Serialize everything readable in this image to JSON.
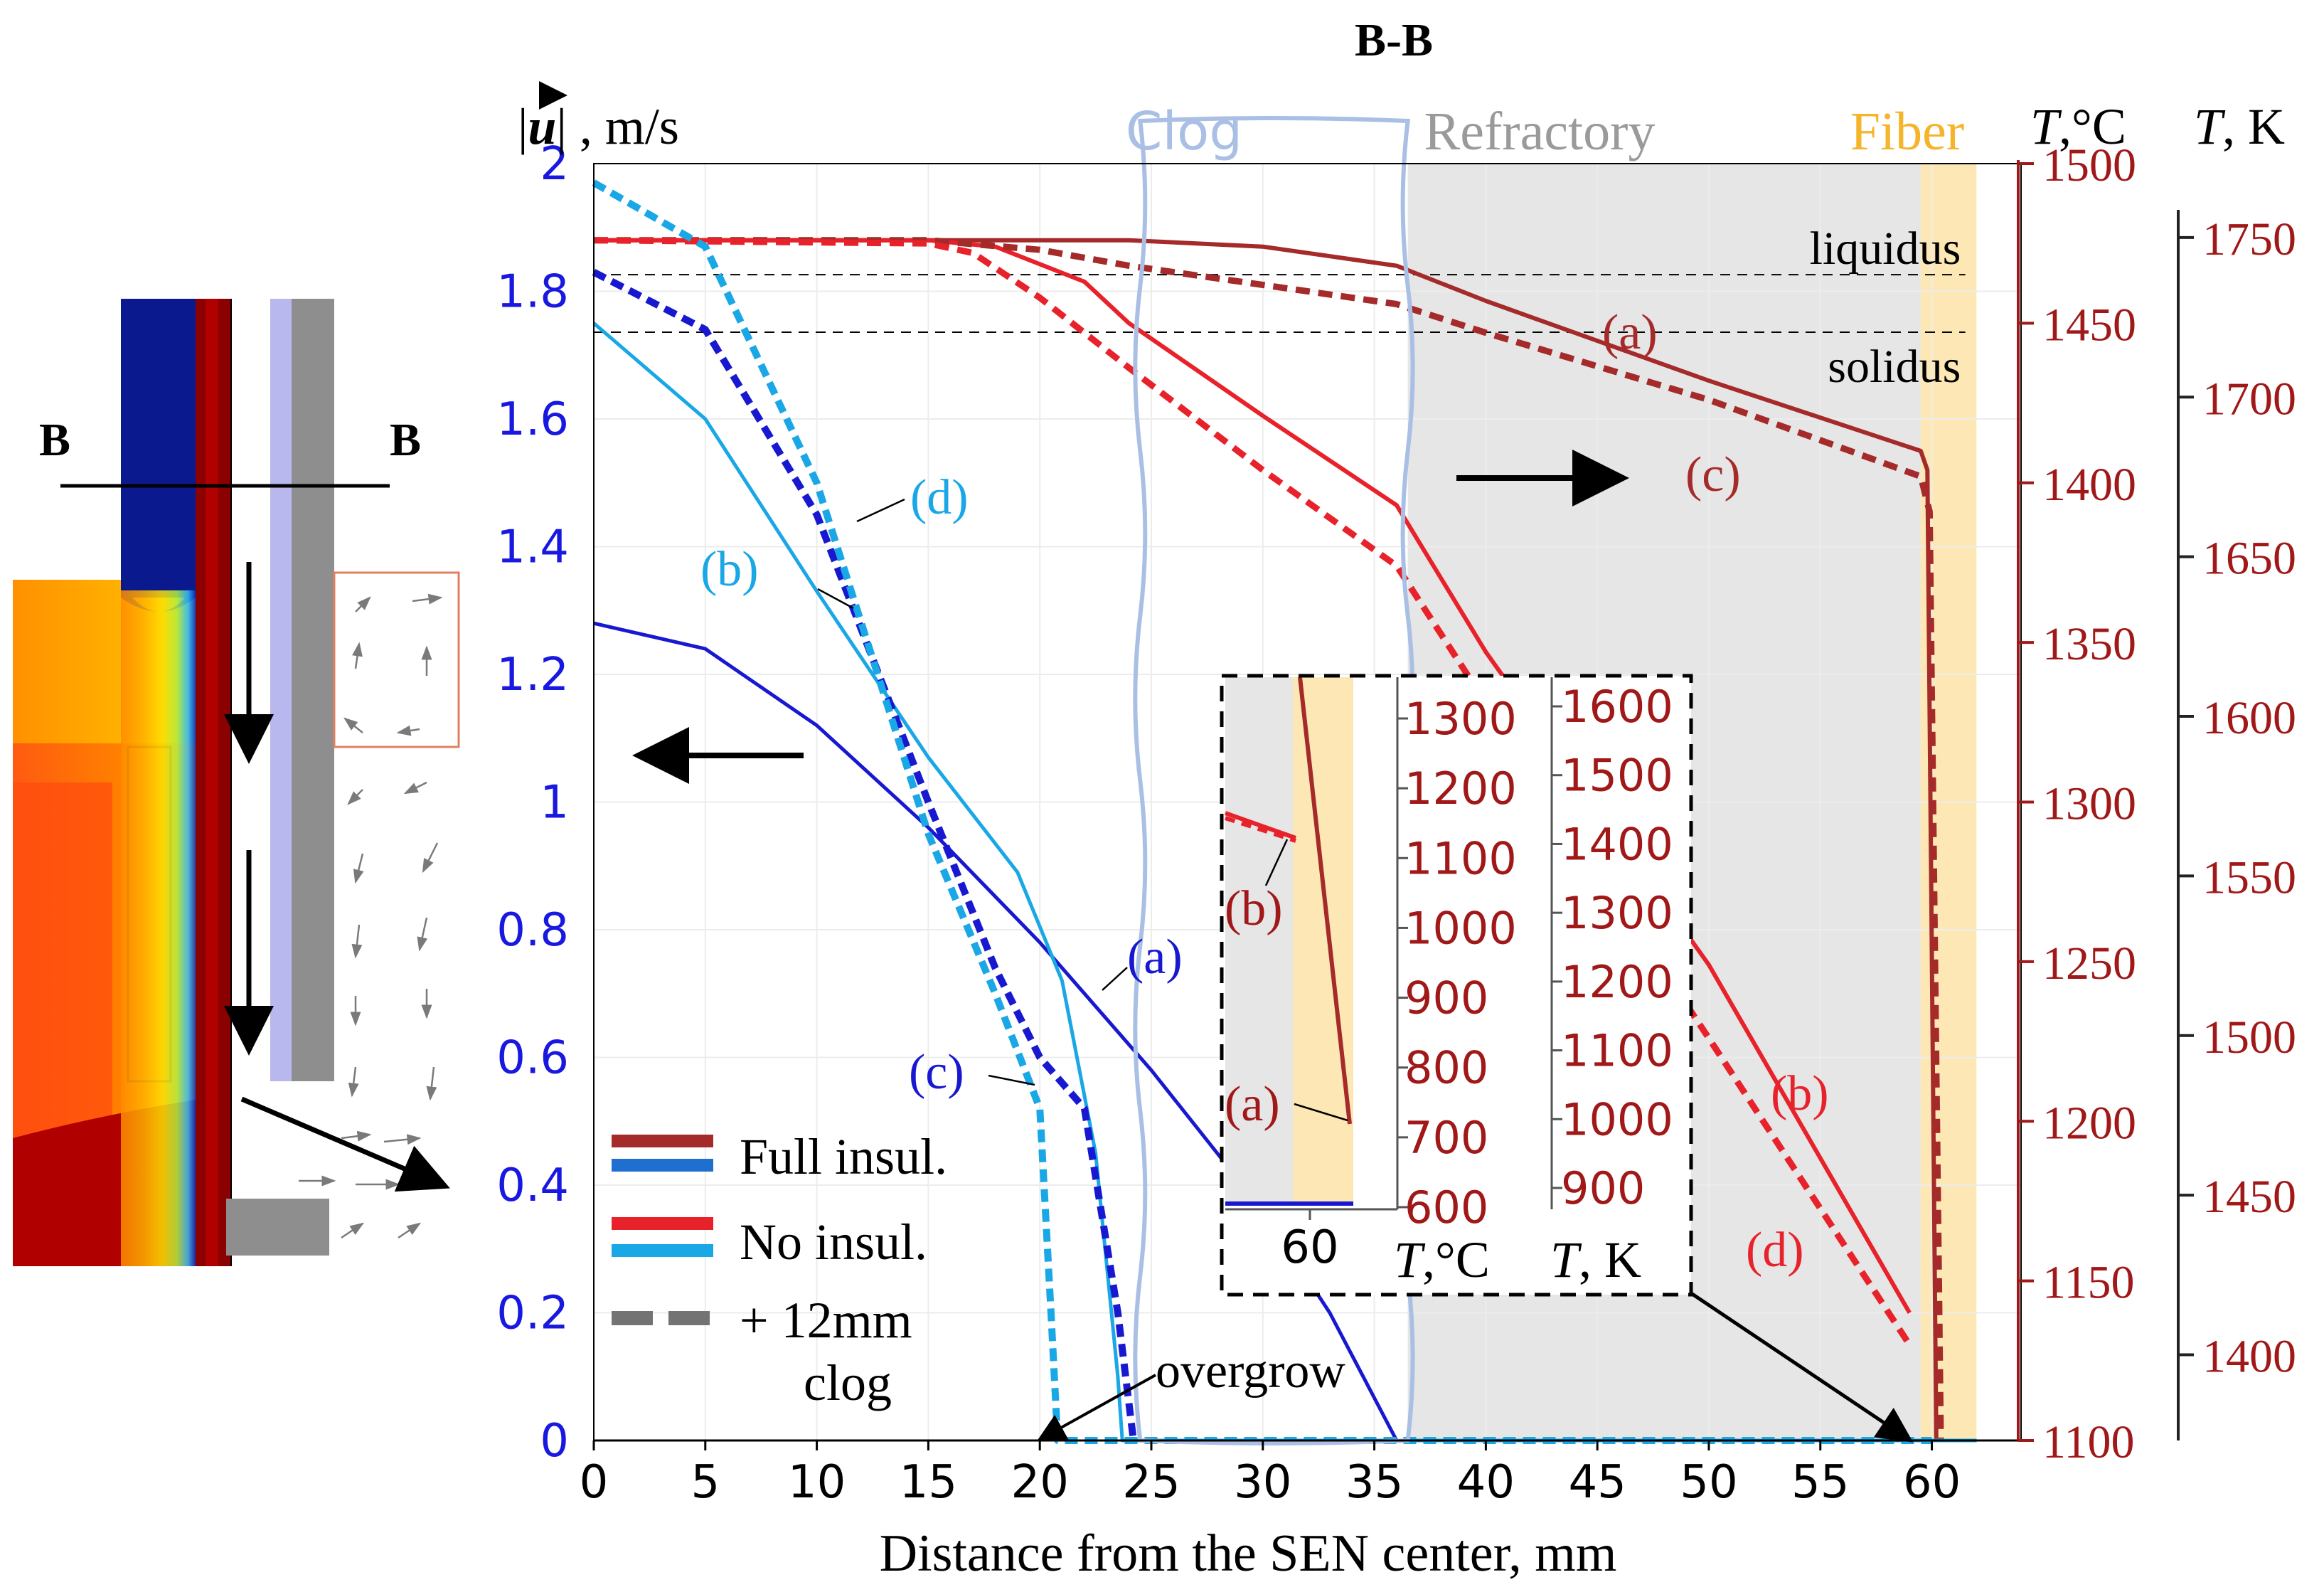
{
  "title": "B-B",
  "colors": {
    "full_temp": "#a52a2a",
    "no_temp": "#e8222a",
    "full_vel": "#1818d0",
    "no_vel": "#1aa7e6",
    "left_axis": "#1818e0",
    "right_axis": "#a01818",
    "clog_box": "#a9bfe4",
    "refractory_fill": "#e6e6e6",
    "fiber_fill": "#fde8b5",
    "label_refractory": "#9a9a9a",
    "label_fiber": "#f5b42a",
    "label_clog": "#a9bfe4"
  },
  "regions": {
    "clog": {
      "label": "Clog",
      "x_range": [
        24.5,
        36.5
      ]
    },
    "refractory": {
      "label": "Refractory",
      "x_range": [
        36.5,
        59.5
      ]
    },
    "fiber": {
      "label": "Fiber",
      "x_range": [
        59.5,
        62
      ]
    }
  },
  "left_schematic": {
    "section_label_left": "B",
    "section_label_right": "B"
  },
  "reference_lines": [
    {
      "label": "liquidus",
      "velocity_equiv": 1.826
    },
    {
      "label": "solidus",
      "velocity_equiv": 1.736
    }
  ],
  "annotations": {
    "overgrow": "overgrow",
    "curve_a_vel": "(a)",
    "curve_b_vel": "(b)",
    "curve_c_vel": "(c)",
    "curve_d_vel": "(d)",
    "curve_a_temp": "(a)",
    "curve_b_temp": "(b)",
    "curve_c_temp": "(c)",
    "curve_d_temp": "(d)"
  },
  "legend": {
    "items": [
      {
        "label": "Full insul.",
        "style": "solid-pair-full"
      },
      {
        "label": "No insul.",
        "style": "solid-pair-no"
      },
      {
        "label": "+ 12mm",
        "style": "dashed-gray"
      },
      {
        "label": "clog",
        "style": "continuation"
      }
    ]
  },
  "inset": {
    "x_tick": "60",
    "c_ticks": [
      "600",
      "700",
      "800",
      "900",
      "1000",
      "1100",
      "1200",
      "1300"
    ],
    "k_ticks": [
      "900",
      "1000",
      "1100",
      "1200",
      "1300",
      "1400",
      "1500",
      "1600"
    ],
    "c_label_T": "T",
    "c_label_unit": ",°C",
    "k_label_T": "T",
    "k_label_unit": ", K",
    "label_b": "(b)",
    "label_a": "(a)"
  },
  "chart_data": {
    "type": "line",
    "title": "B-B",
    "xlabel": "Distance from the SEN center, mm",
    "ylabel_left_prefix": "|",
    "ylabel_left_symbol": "u",
    "ylabel_left_suffix": "| , m/s",
    "ylabel_right1_T": "T",
    "ylabel_right1_unit": ",°C",
    "ylabel_right2_T": "T",
    "ylabel_right2_unit": ", K",
    "xlim": [
      0,
      64
    ],
    "ylim_left": [
      0,
      2
    ],
    "ylim_right_c": [
      1100,
      1500
    ],
    "ylim_right_k": [
      1373.15,
      1773.15
    ],
    "x_ticks": [
      "0",
      "5",
      "10",
      "15",
      "20",
      "25",
      "30",
      "35",
      "40",
      "45",
      "50",
      "55",
      "60"
    ],
    "y_left_ticks": [
      "0",
      "0.2",
      "0.4",
      "0.6",
      "0.8",
      "1",
      "1.2",
      "1.4",
      "1.6",
      "1.8",
      "2"
    ],
    "y_right_c_ticks": [
      "1100",
      "1150",
      "1200",
      "1250",
      "1300",
      "1350",
      "1400",
      "1450",
      "1500"
    ],
    "y_right_k_ticks": [
      "1400",
      "1450",
      "1500",
      "1550",
      "1600",
      "1650",
      "1700",
      "1750"
    ],
    "velocity_series": [
      {
        "name": "(a) Full insul.",
        "dashed": false,
        "color": "#1818d0",
        "x": [
          0,
          5,
          10,
          15,
          20,
          25,
          30,
          33,
          36,
          40,
          62
        ],
        "y": [
          1.28,
          1.24,
          1.12,
          0.96,
          0.78,
          0.58,
          0.36,
          0.2,
          0.0,
          0.0,
          0.0
        ]
      },
      {
        "name": "(b) No insul.",
        "dashed": false,
        "color": "#1aa7e6",
        "x": [
          0,
          5,
          10,
          15,
          19,
          21,
          22.5,
          23.5,
          23.7,
          40,
          62
        ],
        "y": [
          1.75,
          1.6,
          1.33,
          1.07,
          0.89,
          0.72,
          0.45,
          0.1,
          0.0,
          0.0,
          0.0
        ]
      },
      {
        "name": "(c) Full insul. + 12mm clog",
        "dashed": true,
        "color": "#1818d0",
        "x": [
          0,
          5,
          10,
          15,
          18,
          20,
          22,
          23.5,
          24.2
        ],
        "y": [
          1.83,
          1.74,
          1.45,
          1.0,
          0.74,
          0.6,
          0.52,
          0.2,
          0.0
        ]
      },
      {
        "name": "(d) No insul. + 12mm clog",
        "dashed": true,
        "color": "#1aa7e6",
        "x": [
          0,
          5,
          10,
          15,
          18,
          20,
          20.5,
          20.8,
          40,
          60
        ],
        "y": [
          1.97,
          1.87,
          1.5,
          0.95,
          0.7,
          0.52,
          0.2,
          0.0,
          0.0,
          0.0
        ]
      }
    ],
    "temperature_series": [
      {
        "name": "(a) Full insul.",
        "dashed": false,
        "color": "#a52a2a",
        "x": [
          0,
          20,
          24,
          30,
          36,
          40,
          50,
          59.5,
          59.8,
          60.2
        ],
        "y": [
          1476,
          1476,
          1476,
          1474,
          1468,
          1457,
          1432,
          1410,
          1404,
          1100
        ]
      },
      {
        "name": "(b) No insul.",
        "dashed": false,
        "color": "#e8222a",
        "x": [
          0,
          15,
          18,
          22,
          24,
          30,
          36,
          40,
          50,
          59
        ],
        "y": [
          1476,
          1476,
          1474,
          1463,
          1450,
          1421,
          1393,
          1347,
          1249,
          1140
        ]
      },
      {
        "name": "(c) Full insul. + 12mm clog",
        "dashed": true,
        "color": "#a52a2a",
        "x": [
          0,
          15,
          20,
          24,
          30,
          36,
          40,
          50,
          59.5,
          59.9,
          60.4
        ],
        "y": [
          1476,
          1476,
          1473,
          1468,
          1462,
          1456,
          1447,
          1426,
          1402,
          1391,
          1100
        ]
      },
      {
        "name": "(d) No insul. + 12mm clog",
        "dashed": true,
        "color": "#e8222a",
        "x": [
          0,
          15,
          17,
          20,
          24,
          30,
          36,
          40,
          50,
          59
        ],
        "y": [
          1476,
          1475,
          1472,
          1458,
          1436,
          1404,
          1374,
          1331,
          1226,
          1130
        ]
      }
    ]
  }
}
